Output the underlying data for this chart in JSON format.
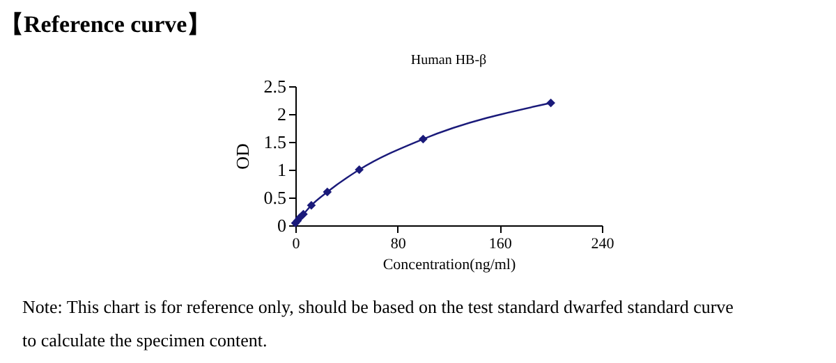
{
  "chart_data": {
    "type": "line",
    "title": "【Reference curve】",
    "subtitle": "Human HB-β",
    "xlabel": "Concentration(ng/ml)",
    "ylabel": "OD",
    "x": [
      0,
      1.56,
      3.12,
      6.25,
      12.5,
      25,
      50,
      100,
      200
    ],
    "series": [
      {
        "color": "#1a1a7a",
        "values": [
          0.04,
          0.08,
          0.13,
          0.2,
          0.36,
          0.6,
          1.0,
          1.55,
          2.2
        ]
      }
    ],
    "xlim": [
      0,
      240
    ],
    "xticks": [
      0,
      80,
      160,
      240
    ],
    "ylim": [
      0,
      2.5
    ],
    "yticks": [
      0,
      0.5,
      1,
      1.5,
      2,
      2.5
    ],
    "grid": false,
    "marker": "diamond",
    "line_style": "solid",
    "annotations": [
      "Note: This chart is for reference only, should be based on the test standard dwarfed standard curve to calculate the specimen content."
    ]
  }
}
